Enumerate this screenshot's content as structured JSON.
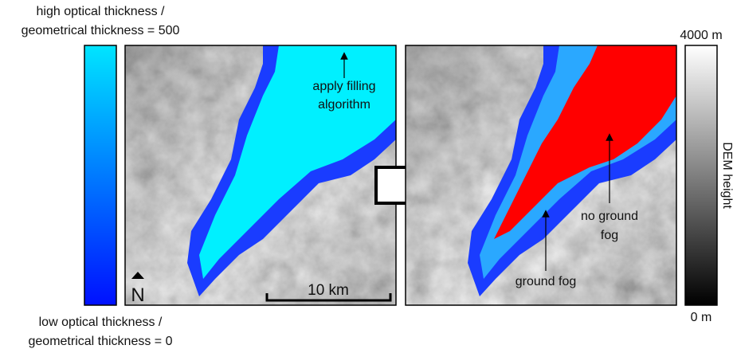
{
  "left_colorbar": {
    "top_label": [
      "high optical thickness /",
      "geometrical thickness = 500"
    ],
    "bottom_label": [
      "low optical thickness /",
      "geometrical thickness = 0"
    ]
  },
  "right_colorbar": {
    "top_label": "4000 m",
    "bottom_label": "0 m",
    "axis_label": "DEM height"
  },
  "left_map": {
    "annotation": [
      "apply filling",
      "algorithm"
    ],
    "north": "N",
    "scale_bar": "10 km"
  },
  "right_map": {
    "annotation_upper": [
      "no ground",
      "fog"
    ],
    "annotation_lower": "ground fog"
  }
}
